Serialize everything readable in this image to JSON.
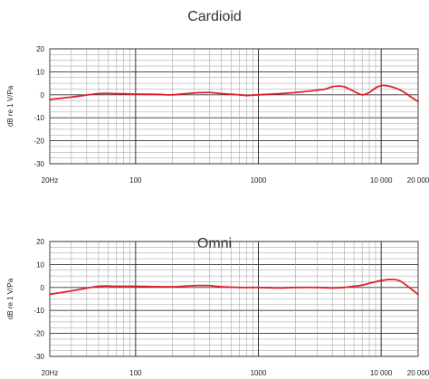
{
  "chart_data": [
    {
      "type": "line",
      "title": "Cardioid",
      "xlabel": "",
      "ylabel": "dB re 1 V/Pa",
      "xscale": "log",
      "xlim": [
        20,
        20000
      ],
      "ylim": [
        -30,
        20
      ],
      "x_tick_labels": [
        {
          "value": 20,
          "label": "20Hz"
        },
        {
          "value": 100,
          "label": "100"
        },
        {
          "value": 1000,
          "label": "1000"
        },
        {
          "value": 10000,
          "label": "10 000"
        },
        {
          "value": 20000,
          "label": "20 000"
        }
      ],
      "y_tick_labels": [
        {
          "value": 20,
          "label": "20"
        },
        {
          "value": 10,
          "label": "10"
        },
        {
          "value": 0,
          "label": "0"
        },
        {
          "value": -10,
          "label": "-10"
        },
        {
          "value": -20,
          "label": "-20"
        },
        {
          "value": -30,
          "label": "-30"
        }
      ],
      "grid": true,
      "color": "#e0202a",
      "series": [
        {
          "x": [
            20,
            30,
            50,
            70,
            100,
            150,
            200,
            300,
            400,
            500,
            700,
            800,
            1000,
            1500,
            2000,
            3000,
            3500,
            4000,
            4500,
            5000,
            5500,
            6000,
            7000,
            8000,
            9000,
            10000,
            11000,
            13000,
            15000,
            17000,
            20000
          ],
          "y": [
            -2,
            -1,
            0.5,
            0.5,
            0.3,
            0.2,
            0,
            0.8,
            1,
            0.5,
            0,
            -0.3,
            0,
            0.5,
            1,
            2,
            2.5,
            3.5,
            3.8,
            3.5,
            2.5,
            1.5,
            0,
            1,
            3,
            4,
            4,
            3,
            1.5,
            -0.5,
            -3
          ]
        }
      ]
    },
    {
      "type": "line",
      "title": "Omni",
      "xlabel": "",
      "ylabel": "dB re 1 V/Pa",
      "xscale": "log",
      "xlim": [
        20,
        20000
      ],
      "ylim": [
        -30,
        20
      ],
      "x_tick_labels": [
        {
          "value": 20,
          "label": "20Hz"
        },
        {
          "value": 100,
          "label": "100"
        },
        {
          "value": 1000,
          "label": "1000"
        },
        {
          "value": 10000,
          "label": "10 000"
        },
        {
          "value": 20000,
          "label": "20 000"
        }
      ],
      "y_tick_labels": [
        {
          "value": 20,
          "label": "20"
        },
        {
          "value": 10,
          "label": "10"
        },
        {
          "value": 0,
          "label": "0"
        },
        {
          "value": -10,
          "label": "-10"
        },
        {
          "value": -20,
          "label": "-20"
        },
        {
          "value": -30,
          "label": "-30"
        }
      ],
      "grid": true,
      "color": "#e0202a",
      "series": [
        {
          "x": [
            20,
            30,
            50,
            70,
            100,
            200,
            300,
            400,
            500,
            700,
            1000,
            1500,
            2000,
            3000,
            4000,
            5000,
            6000,
            7000,
            8000,
            10000,
            12000,
            14000,
            16000,
            20000
          ],
          "y": [
            -3,
            -1.5,
            0.5,
            0.5,
            0.5,
            0.3,
            0.8,
            0.8,
            0.3,
            0,
            0,
            -0.2,
            0,
            0,
            -0.2,
            0,
            0.5,
            1,
            1.8,
            3,
            3.5,
            3,
            1,
            -3
          ]
        }
      ]
    }
  ]
}
